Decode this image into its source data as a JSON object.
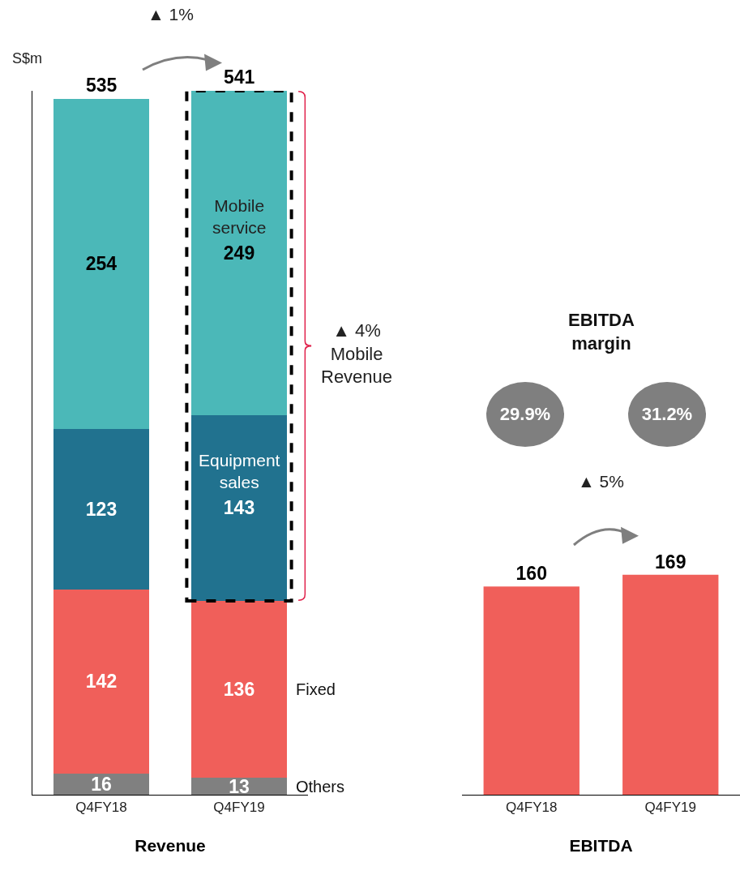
{
  "chart_data": [
    {
      "type": "bar",
      "stacked": true,
      "categories": [
        "Q4FY18",
        "Q4FY19"
      ],
      "series": [
        {
          "name": "Others",
          "color": "#808080",
          "values": [
            16,
            13
          ]
        },
        {
          "name": "Fixed",
          "color": "#f05f5a",
          "values": [
            142,
            136
          ]
        },
        {
          "name": "Equipment sales",
          "color": "#21728f",
          "values": [
            123,
            143
          ]
        },
        {
          "name": "Mobile service",
          "color": "#4bb8b8",
          "values": [
            254,
            249
          ]
        }
      ],
      "ylim": [
        0,
        541
      ],
      "tick_labels": "x",
      "data_labels": true,
      "totals": [
        "535",
        "541"
      ],
      "ylabel": "S$m",
      "xlabel": "Revenue",
      "annotations": [
        "▲ 1%",
        "▲ 4%\nMobile\nRevenue"
      ]
    },
    {
      "type": "bar",
      "categories": [
        "Q4FY18",
        "Q4FY19"
      ],
      "values": [
        160,
        169
      ],
      "color": "#f05f5a",
      "tick_labels": "x",
      "data_labels": true,
      "xlabel": "EBITDA",
      "annotations": [
        "EBITDA\nmargin",
        "29.9%",
        "31.2%",
        "▲ 5%"
      ]
    }
  ]
}
